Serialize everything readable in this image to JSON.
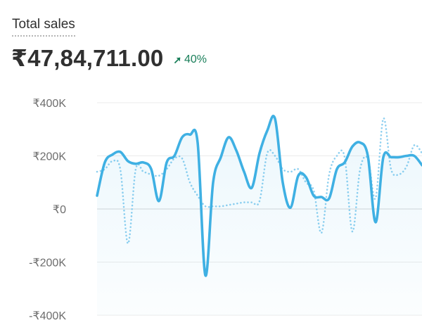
{
  "metric": {
    "label": "Total sales",
    "value": "₹47,84,711.00",
    "trend": "40%",
    "trend_direction": "up",
    "trend_icon": "arrow-up-right-icon",
    "trend_color": "#1a7f5a"
  },
  "chart_data": {
    "type": "line",
    "title": "",
    "xlabel": "",
    "ylabel": "",
    "ylim": [
      -400000,
      400000
    ],
    "yticks": [
      {
        "value": 400000,
        "label": "₹400K"
      },
      {
        "value": 200000,
        "label": "₹200K"
      },
      {
        "value": 0,
        "label": "₹0"
      },
      {
        "value": -200000,
        "label": "-₹200K"
      },
      {
        "value": -400000,
        "label": "-₹400K"
      }
    ],
    "grid": true,
    "legend": "none",
    "series": [
      {
        "style": "solid",
        "color": "#3fb0e3",
        "area_fill": true,
        "values": [
          50000,
          175000,
          205000,
          215000,
          180000,
          170000,
          175000,
          150000,
          30000,
          175000,
          200000,
          270000,
          280000,
          250000,
          -250000,
          100000,
          195000,
          270000,
          220000,
          140000,
          80000,
          210000,
          295000,
          340000,
          100000,
          5000,
          125000,
          120000,
          50000,
          45000,
          40000,
          150000,
          175000,
          235000,
          250000,
          200000,
          -50000,
          195000,
          195000,
          195000,
          200000,
          200000,
          165000
        ]
      },
      {
        "style": "dotted",
        "color": "#8fd0f0",
        "area_fill": false,
        "values": [
          140000,
          150000,
          180000,
          150000,
          -130000,
          150000,
          140000,
          130000,
          125000,
          150000,
          190000,
          190000,
          100000,
          50000,
          10000,
          10000,
          10000,
          15000,
          20000,
          25000,
          25000,
          30000,
          210000,
          200000,
          150000,
          140000,
          150000,
          100000,
          70000,
          -90000,
          130000,
          200000,
          195000,
          -85000,
          150000,
          190000,
          40000,
          340000,
          150000,
          130000,
          160000,
          240000,
          210000
        ]
      }
    ]
  }
}
